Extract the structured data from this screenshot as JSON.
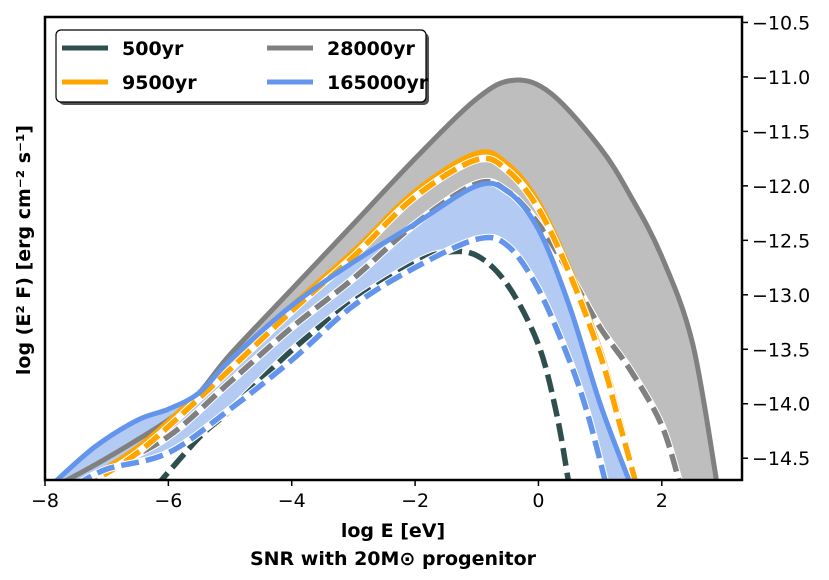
{
  "chart_data": {
    "type": "line",
    "title": "",
    "xlabel": "log E [eV]",
    "subtitle": "SNR with 20M⊙ progenitor",
    "ylabel": "log (E² F) [erg cm⁻² s⁻¹]",
    "xlim": [
      -8,
      3.3
    ],
    "ylim": [
      -14.7,
      -10.45
    ],
    "x_ticks": [
      -8,
      -6,
      -4,
      -2,
      0,
      2
    ],
    "x_tick_labels": [
      "−8",
      "−6",
      "−4",
      "−2",
      "0",
      "2"
    ],
    "y_ticks": [
      -10.5,
      -11.0,
      -11.5,
      -12.0,
      -12.5,
      -13.0,
      -13.5,
      -14.0,
      -14.5
    ],
    "y_tick_labels": [
      "−10.5",
      "−11.0",
      "−11.5",
      "−12.0",
      "−12.5",
      "−13.0",
      "−13.5",
      "−14.0",
      "−14.5"
    ],
    "y_axis_side": "right",
    "grid": false,
    "legend_position": "top-left",
    "legend_columns": 2,
    "series": [
      {
        "name": "500yr",
        "color": "#2f4f4f",
        "solid": [
          [
            -6.2,
            -14.75
          ],
          [
            -5.5,
            -14.3
          ],
          [
            -5,
            -14.05
          ],
          [
            -4,
            -13.5
          ],
          [
            -3,
            -13.05
          ],
          [
            -2,
            -12.7
          ],
          [
            -1.5,
            -12.6
          ],
          [
            -1,
            -12.63
          ],
          [
            -0.5,
            -12.9
          ],
          [
            0,
            -13.45
          ],
          [
            0.3,
            -14.1
          ],
          [
            0.5,
            -14.75
          ]
        ],
        "dashed": [
          [
            -6.2,
            -14.76
          ],
          [
            -5.5,
            -14.31
          ],
          [
            -5,
            -14.06
          ],
          [
            -4,
            -13.51
          ],
          [
            -3,
            -13.06
          ],
          [
            -2,
            -12.71
          ],
          [
            -1.5,
            -12.61
          ],
          [
            -1,
            -12.64
          ],
          [
            -0.5,
            -12.91
          ],
          [
            0,
            -13.46
          ],
          [
            0.3,
            -14.11
          ],
          [
            0.5,
            -14.76
          ]
        ]
      },
      {
        "name": "28000yr",
        "color": "#808080",
        "band_color": "#bebebe",
        "solid": [
          [
            -7.8,
            -14.75
          ],
          [
            -7,
            -14.5
          ],
          [
            -6,
            -14.15
          ],
          [
            -5.5,
            -13.9
          ],
          [
            -5,
            -13.55
          ],
          [
            -4,
            -12.95
          ],
          [
            -3,
            -12.35
          ],
          [
            -2,
            -11.75
          ],
          [
            -1,
            -11.2
          ],
          [
            -0.4,
            -11.03
          ],
          [
            0.2,
            -11.15
          ],
          [
            1,
            -11.65
          ],
          [
            1.5,
            -12.1
          ],
          [
            2,
            -12.65
          ],
          [
            2.5,
            -13.45
          ],
          [
            2.9,
            -14.75
          ]
        ],
        "dashed": [
          [
            -7.5,
            -14.75
          ],
          [
            -7,
            -14.6
          ],
          [
            -6,
            -14.3
          ],
          [
            -5,
            -13.8
          ],
          [
            -4,
            -13.3
          ],
          [
            -3,
            -12.85
          ],
          [
            -2,
            -12.35
          ],
          [
            -1,
            -11.98
          ],
          [
            -0.5,
            -12.05
          ],
          [
            0,
            -12.35
          ],
          [
            0.5,
            -12.8
          ],
          [
            1,
            -13.3
          ],
          [
            1.5,
            -13.7
          ],
          [
            2,
            -14.2
          ],
          [
            2.3,
            -14.75
          ]
        ]
      },
      {
        "name": "9500yr",
        "color": "#ffa500",
        "solid": [
          [
            -7.5,
            -14.75
          ],
          [
            -6.5,
            -14.4
          ],
          [
            -5.5,
            -13.9
          ],
          [
            -4,
            -13.1
          ],
          [
            -3,
            -12.6
          ],
          [
            -2,
            -12.05
          ],
          [
            -1,
            -11.7
          ],
          [
            -0.5,
            -11.8
          ],
          [
            0,
            -12.15
          ],
          [
            0.5,
            -12.75
          ],
          [
            1,
            -13.5
          ],
          [
            1.3,
            -14.1
          ],
          [
            1.6,
            -14.75
          ]
        ],
        "dashed": [
          [
            -7.4,
            -14.77
          ],
          [
            -6.5,
            -14.45
          ],
          [
            -5.5,
            -13.95
          ],
          [
            -4,
            -13.15
          ],
          [
            -3,
            -12.65
          ],
          [
            -2,
            -12.1
          ],
          [
            -1,
            -11.76
          ],
          [
            -0.5,
            -11.86
          ],
          [
            0,
            -12.21
          ],
          [
            0.5,
            -12.8
          ],
          [
            1,
            -13.55
          ],
          [
            1.3,
            -14.15
          ],
          [
            1.6,
            -14.77
          ]
        ]
      },
      {
        "name": "165000yr",
        "color": "#6495ed",
        "band_color": "#b3caf3",
        "solid": [
          [
            -7.9,
            -14.75
          ],
          [
            -7.2,
            -14.4
          ],
          [
            -6.5,
            -14.15
          ],
          [
            -6,
            -14.05
          ],
          [
            -5.5,
            -13.9
          ],
          [
            -5,
            -13.6
          ],
          [
            -4,
            -13.1
          ],
          [
            -3,
            -12.7
          ],
          [
            -2,
            -12.35
          ],
          [
            -1,
            -12.0
          ],
          [
            -0.5,
            -12.05
          ],
          [
            0,
            -12.4
          ],
          [
            0.5,
            -13.1
          ],
          [
            1,
            -14.0
          ],
          [
            1.5,
            -14.75
          ]
        ],
        "dashed": [
          [
            -7.5,
            -14.75
          ],
          [
            -7,
            -14.6
          ],
          [
            -6,
            -14.45
          ],
          [
            -5,
            -14.05
          ],
          [
            -4,
            -13.6
          ],
          [
            -3,
            -13.1
          ],
          [
            -2,
            -12.75
          ],
          [
            -1,
            -12.49
          ],
          [
            -0.5,
            -12.55
          ],
          [
            0,
            -12.95
          ],
          [
            0.5,
            -13.6
          ],
          [
            0.8,
            -14.1
          ],
          [
            1.1,
            -14.75
          ]
        ]
      }
    ]
  }
}
